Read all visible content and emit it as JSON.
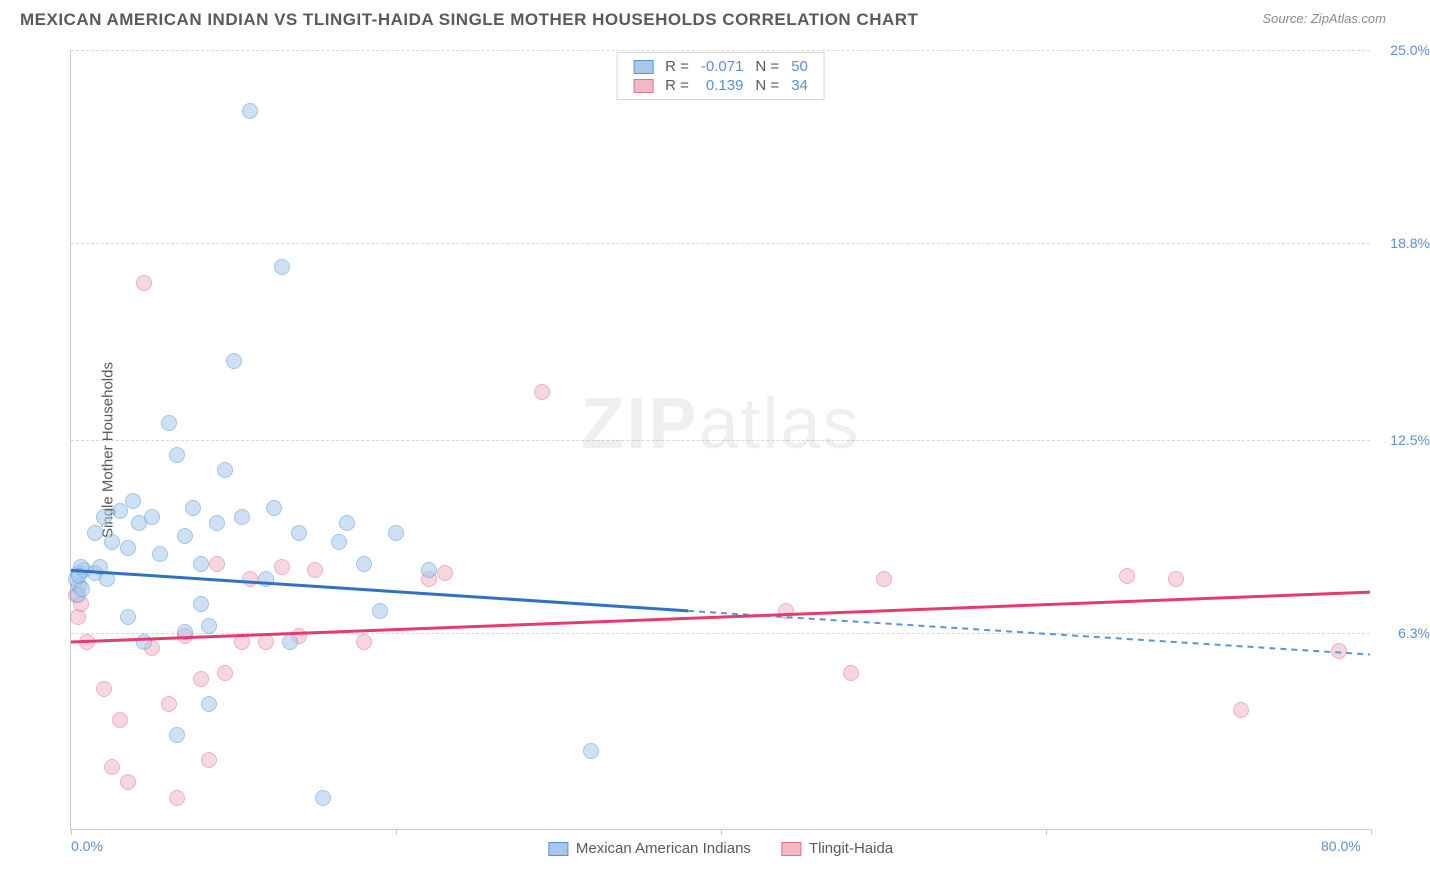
{
  "title": "MEXICAN AMERICAN INDIAN VS TLINGIT-HAIDA SINGLE MOTHER HOUSEHOLDS CORRELATION CHART",
  "source_label": "Source: ",
  "source_name": "ZipAtlas.com",
  "ylabel": "Single Mother Households",
  "watermark_a": "ZIP",
  "watermark_b": "atlas",
  "chart": {
    "type": "scatter",
    "xlim": [
      0,
      80
    ],
    "ylim": [
      0,
      25
    ],
    "x_ticks": [
      {
        "v": 0.0,
        "label": "0.0%"
      },
      {
        "v": 80.0,
        "label": "80.0%"
      }
    ],
    "x_tick_marks": [
      0,
      20,
      40,
      60,
      80
    ],
    "y_ticks": [
      {
        "v": 6.3,
        "label": "6.3%"
      },
      {
        "v": 12.5,
        "label": "12.5%"
      },
      {
        "v": 18.8,
        "label": "18.8%"
      },
      {
        "v": 25.0,
        "label": "25.0%"
      }
    ],
    "grid_color": "#d8d8d8",
    "border_color": "#c9c9c9",
    "background_color": "#ffffff",
    "marker_radius": 8,
    "marker_opacity": 0.55,
    "series": [
      {
        "name": "Mexican American Indians",
        "fill": "#a7c7eb",
        "stroke": "#5a94d6",
        "line_color": "#2f72c4",
        "dash_color": "#5a94d6",
        "r": "-0.071",
        "n": "50",
        "trend": {
          "x1": 0,
          "y1": 8.3,
          "x2": 38,
          "y2": 7.0,
          "x3": 80,
          "y3": 5.6
        },
        "points": [
          [
            0.5,
            8.2
          ],
          [
            0.5,
            7.8
          ],
          [
            0.3,
            8.0
          ],
          [
            0.8,
            8.3
          ],
          [
            0.4,
            7.5
          ],
          [
            0.6,
            8.4
          ],
          [
            0.5,
            8.1
          ],
          [
            0.7,
            7.7
          ],
          [
            1.5,
            9.5
          ],
          [
            1.5,
            8.2
          ],
          [
            2.0,
            10.0
          ],
          [
            2.5,
            9.2
          ],
          [
            3.0,
            10.2
          ],
          [
            3.5,
            9.0
          ],
          [
            3.8,
            10.5
          ],
          [
            4.2,
            9.8
          ],
          [
            5.0,
            10.0
          ],
          [
            5.5,
            8.8
          ],
          [
            6.0,
            13.0
          ],
          [
            6.5,
            12.0
          ],
          [
            7.0,
            9.4
          ],
          [
            7.5,
            10.3
          ],
          [
            8.0,
            8.5
          ],
          [
            8.5,
            6.5
          ],
          [
            8.0,
            7.2
          ],
          [
            9.0,
            9.8
          ],
          [
            9.5,
            11.5
          ],
          [
            10.0,
            15.0
          ],
          [
            10.5,
            10.0
          ],
          [
            11.0,
            23.0
          ],
          [
            12.0,
            8.0
          ],
          [
            12.5,
            10.3
          ],
          [
            13.0,
            18.0
          ],
          [
            13.5,
            6.0
          ],
          [
            14.0,
            9.5
          ],
          [
            15.5,
            1.0
          ],
          [
            16.5,
            9.2
          ],
          [
            17.0,
            9.8
          ],
          [
            18.0,
            8.5
          ],
          [
            19.0,
            7.0
          ],
          [
            20.0,
            9.5
          ],
          [
            22.0,
            8.3
          ],
          [
            6.5,
            3.0
          ],
          [
            8.5,
            4.0
          ],
          [
            32.0,
            2.5
          ],
          [
            7.0,
            6.3
          ],
          [
            3.5,
            6.8
          ],
          [
            4.5,
            6.0
          ],
          [
            2.2,
            8.0
          ],
          [
            1.8,
            8.4
          ]
        ]
      },
      {
        "name": "Tlingit-Haida",
        "fill": "#f2b8c6",
        "stroke": "#e76f91",
        "line_color": "#e33d6e",
        "r": "0.139",
        "n": "34",
        "trend": {
          "x1": 0,
          "y1": 6.0,
          "x2": 80,
          "y2": 7.6
        },
        "points": [
          [
            0.3,
            7.5
          ],
          [
            0.4,
            6.8
          ],
          [
            0.6,
            7.2
          ],
          [
            1.0,
            6.0
          ],
          [
            2.0,
            4.5
          ],
          [
            2.5,
            2.0
          ],
          [
            3.0,
            3.5
          ],
          [
            3.5,
            1.5
          ],
          [
            4.5,
            17.5
          ],
          [
            5.0,
            5.8
          ],
          [
            6.0,
            4.0
          ],
          [
            6.5,
            1.0
          ],
          [
            7.0,
            6.2
          ],
          [
            8.0,
            4.8
          ],
          [
            9.0,
            8.5
          ],
          [
            9.5,
            5.0
          ],
          [
            10.5,
            6.0
          ],
          [
            11.0,
            8.0
          ],
          [
            12.0,
            6.0
          ],
          [
            13.0,
            8.4
          ],
          [
            14.0,
            6.2
          ],
          [
            15.0,
            8.3
          ],
          [
            18.0,
            6.0
          ],
          [
            22.0,
            8.0
          ],
          [
            23.0,
            8.2
          ],
          [
            29.0,
            14.0
          ],
          [
            44.0,
            7.0
          ],
          [
            48.0,
            5.0
          ],
          [
            50.0,
            8.0
          ],
          [
            65.0,
            8.1
          ],
          [
            68.0,
            8.0
          ],
          [
            72.0,
            3.8
          ],
          [
            78.0,
            5.7
          ],
          [
            8.5,
            2.2
          ]
        ]
      }
    ],
    "legend_r_label": "R =",
    "legend_n_label": "N ="
  }
}
